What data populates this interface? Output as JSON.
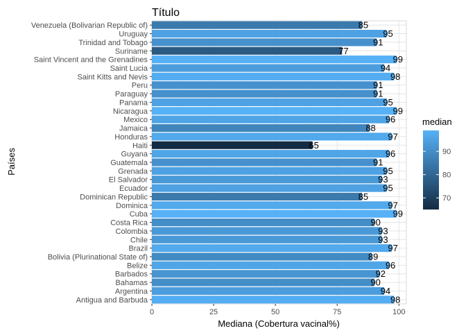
{
  "chart_data": {
    "type": "bar",
    "orientation": "horizontal",
    "title": "Título",
    "xlabel": "Mediana (Cobertura vacinal%)",
    "ylabel": "Países",
    "xlim": [
      0,
      103
    ],
    "x_ticks": [
      0,
      25,
      50,
      75,
      100
    ],
    "grid": true,
    "categories": [
      "Venezuela (Bolivarian Republic of)",
      "Uruguay",
      "Trinidad and Tobago",
      "Suriname",
      "Saint Vincent and the Grenadines",
      "Saint Lucia",
      "Saint Kitts and Nevis",
      "Peru",
      "Paraguay",
      "Panama",
      "Nicaragua",
      "Mexico",
      "Jamaica",
      "Honduras",
      "Haiti",
      "Guyana",
      "Guatemala",
      "Grenada",
      "El Salvador",
      "Ecuador",
      "Dominican Republic",
      "Dominica",
      "Cuba",
      "Costa Rica",
      "Colombia",
      "Chile",
      "Brazil",
      "Bolivia (Plurinational State of)",
      "Belize",
      "Barbados",
      "Bahamas",
      "Argentina",
      "Antigua and Barbuda"
    ],
    "values": [
      85,
      95,
      91,
      77,
      99,
      94,
      98,
      91,
      91,
      95,
      99,
      96,
      88,
      97,
      65,
      96,
      91,
      95,
      93,
      95,
      85,
      97,
      99,
      90,
      93,
      93,
      97,
      89,
      96,
      92,
      90,
      94,
      98
    ],
    "labels": [
      "85",
      "95",
      "91",
      "77",
      "99",
      "94",
      "98",
      "91",
      "91",
      "95",
      "99",
      "96",
      "88",
      "97",
      "65",
      "96",
      "91",
      "95",
      "93",
      "95",
      "85",
      "97",
      "99",
      "90",
      "93",
      "93",
      "97",
      "89",
      "96",
      "92",
      "90",
      "94",
      "98"
    ],
    "legend": {
      "title": "median",
      "position": "right",
      "ticks": [
        70,
        80,
        90
      ],
      "tick_labels": [
        "70",
        "80",
        "90"
      ],
      "range": [
        65,
        99
      ],
      "color_low": "#132B43",
      "color_high": "#56B1F7"
    }
  }
}
